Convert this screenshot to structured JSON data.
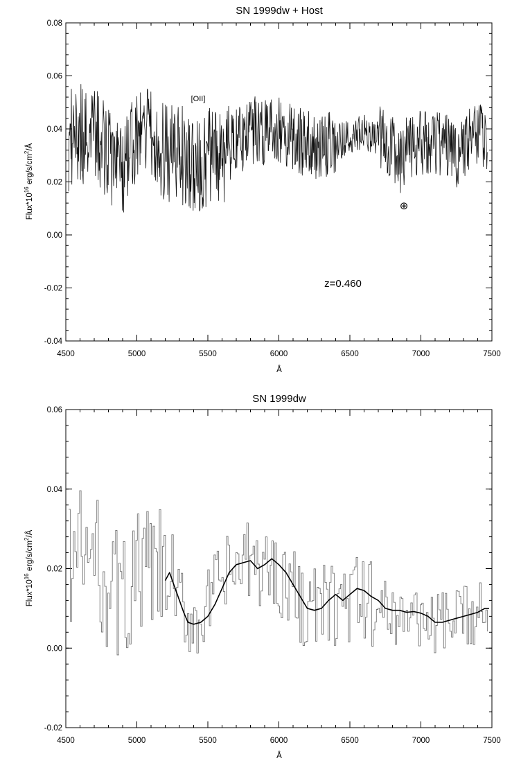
{
  "chart_data": [
    {
      "type": "line",
      "title": "SN 1999dw + Host",
      "xlabel": "Å",
      "ylabel_main": "Flux*10",
      "ylabel_sup": "16",
      "ylabel_rest": " erg/s/cm",
      "ylabel_sup2": "2",
      "ylabel_tail": "/Å",
      "xlim": [
        4500,
        7500
      ],
      "ylim": [
        -0.04,
        0.08
      ],
      "xticks": [
        "4500",
        "5000",
        "5500",
        "6000",
        "6500",
        "7000",
        "7500"
      ],
      "yticks": [
        "-0.04",
        "-0.02",
        "0.00",
        "0.02",
        "0.04",
        "0.06",
        "0.08"
      ],
      "grid": false,
      "annotations": [
        {
          "text": "[OII]",
          "x": 5440,
          "y": 0.051
        },
        {
          "text": "⊕",
          "x": 6880,
          "y": 0.0105
        },
        {
          "text": "z=0.460",
          "x": 6450,
          "y": -0.019
        }
      ],
      "series": [
        {
          "style": "noisy-spectrum",
          "points": [
            [
              4520,
              0.035
            ],
            [
              4580,
              0.04
            ],
            [
              4650,
              0.035
            ],
            [
              4720,
              0.036
            ],
            [
              4800,
              0.03
            ],
            [
              4880,
              0.025
            ],
            [
              4950,
              0.03
            ],
            [
              5000,
              0.038
            ],
            [
              5050,
              0.04
            ],
            [
              5100,
              0.036
            ],
            [
              5150,
              0.033
            ],
            [
              5200,
              0.031
            ],
            [
              5250,
              0.03
            ],
            [
              5300,
              0.032
            ],
            [
              5350,
              0.027
            ],
            [
              5400,
              0.027
            ],
            [
              5450,
              0.026
            ],
            [
              5500,
              0.028
            ],
            [
              5550,
              0.033
            ],
            [
              5600,
              0.026
            ],
            [
              5650,
              0.033
            ],
            [
              5700,
              0.036
            ],
            [
              5750,
              0.037
            ],
            [
              5800,
              0.038
            ],
            [
              5850,
              0.04
            ],
            [
              5900,
              0.039
            ],
            [
              5950,
              0.041
            ],
            [
              6000,
              0.04
            ],
            [
              6050,
              0.038
            ],
            [
              6100,
              0.036
            ],
            [
              6150,
              0.035
            ],
            [
              6200,
              0.034
            ],
            [
              6250,
              0.033
            ],
            [
              6300,
              0.032
            ],
            [
              6350,
              0.034
            ],
            [
              6400,
              0.035
            ],
            [
              6450,
              0.036
            ],
            [
              6500,
              0.038
            ],
            [
              6550,
              0.038
            ],
            [
              6600,
              0.039
            ],
            [
              6650,
              0.038
            ],
            [
              6700,
              0.037
            ],
            [
              6750,
              0.037
            ],
            [
              6800,
              0.032
            ],
            [
              6850,
              0.028
            ],
            [
              6900,
              0.034
            ],
            [
              6950,
              0.035
            ],
            [
              7000,
              0.034
            ],
            [
              7050,
              0.034
            ],
            [
              7100,
              0.034
            ],
            [
              7150,
              0.035
            ],
            [
              7200,
              0.032
            ],
            [
              7250,
              0.03
            ],
            [
              7300,
              0.033
            ],
            [
              7350,
              0.035
            ],
            [
              7400,
              0.036
            ],
            [
              7450,
              0.038
            ],
            [
              7470,
              0.035
            ]
          ]
        }
      ]
    },
    {
      "type": "line",
      "title": "SN 1999dw",
      "xlabel": "Å",
      "ylabel_main": "Flux*10",
      "ylabel_sup": "16",
      "ylabel_rest": " erg/s/cm",
      "ylabel_sup2": "2",
      "ylabel_tail": "/Å",
      "xlim": [
        4500,
        7500
      ],
      "ylim": [
        -0.02,
        0.06
      ],
      "xticks": [
        "4500",
        "5000",
        "5500",
        "6000",
        "6500",
        "7000",
        "7500"
      ],
      "yticks": [
        "-0.02",
        "0.00",
        "0.02",
        "0.04",
        "0.06"
      ],
      "grid": false,
      "series": [
        {
          "style": "histogram-gray",
          "points": [
            [
              4520,
              0.022
            ],
            [
              4600,
              0.024
            ],
            [
              4700,
              0.022
            ],
            [
              4800,
              0.016
            ],
            [
              4900,
              0.012
            ],
            [
              5000,
              0.018
            ],
            [
              5100,
              0.019
            ],
            [
              5200,
              0.017
            ],
            [
              5300,
              0.01
            ],
            [
              5400,
              0.007
            ],
            [
              5500,
              0.01
            ],
            [
              5600,
              0.017
            ],
            [
              5700,
              0.02
            ],
            [
              5800,
              0.021
            ],
            [
              5900,
              0.02
            ],
            [
              6000,
              0.019
            ],
            [
              6100,
              0.014
            ],
            [
              6200,
              0.01
            ],
            [
              6300,
              0.01
            ],
            [
              6400,
              0.011
            ],
            [
              6500,
              0.012
            ],
            [
              6600,
              0.012
            ],
            [
              6700,
              0.01
            ],
            [
              6800,
              0.009
            ],
            [
              6900,
              0.008
            ],
            [
              7000,
              0.008
            ],
            [
              7100,
              0.006
            ],
            [
              7200,
              0.006
            ],
            [
              7300,
              0.008
            ],
            [
              7400,
              0.009
            ],
            [
              7470,
              0.01
            ]
          ]
        },
        {
          "style": "model-black",
          "points": [
            [
              5200,
              0.017
            ],
            [
              5230,
              0.019
            ],
            [
              5260,
              0.016
            ],
            [
              5300,
              0.012
            ],
            [
              5330,
              0.009
            ],
            [
              5360,
              0.0065
            ],
            [
              5400,
              0.006
            ],
            [
              5450,
              0.0065
            ],
            [
              5500,
              0.008
            ],
            [
              5550,
              0.011
            ],
            [
              5600,
              0.015
            ],
            [
              5650,
              0.019
            ],
            [
              5700,
              0.021
            ],
            [
              5750,
              0.0215
            ],
            [
              5800,
              0.022
            ],
            [
              5850,
              0.02
            ],
            [
              5900,
              0.021
            ],
            [
              5950,
              0.0225
            ],
            [
              6000,
              0.021
            ],
            [
              6050,
              0.019
            ],
            [
              6100,
              0.016
            ],
            [
              6150,
              0.013
            ],
            [
              6200,
              0.01
            ],
            [
              6250,
              0.0095
            ],
            [
              6300,
              0.01
            ],
            [
              6350,
              0.012
            ],
            [
              6400,
              0.0135
            ],
            [
              6450,
              0.012
            ],
            [
              6500,
              0.0135
            ],
            [
              6550,
              0.015
            ],
            [
              6600,
              0.0145
            ],
            [
              6650,
              0.013
            ],
            [
              6700,
              0.012
            ],
            [
              6750,
              0.01
            ],
            [
              6800,
              0.0095
            ],
            [
              6850,
              0.0095
            ],
            [
              6900,
              0.009
            ],
            [
              6950,
              0.0092
            ],
            [
              7000,
              0.0088
            ],
            [
              7050,
              0.008
            ],
            [
              7100,
              0.0065
            ],
            [
              7150,
              0.0065
            ],
            [
              7200,
              0.007
            ],
            [
              7250,
              0.0075
            ],
            [
              7300,
              0.008
            ],
            [
              7350,
              0.0085
            ],
            [
              7400,
              0.009
            ],
            [
              7450,
              0.01
            ],
            [
              7480,
              0.01
            ]
          ]
        }
      ]
    }
  ]
}
